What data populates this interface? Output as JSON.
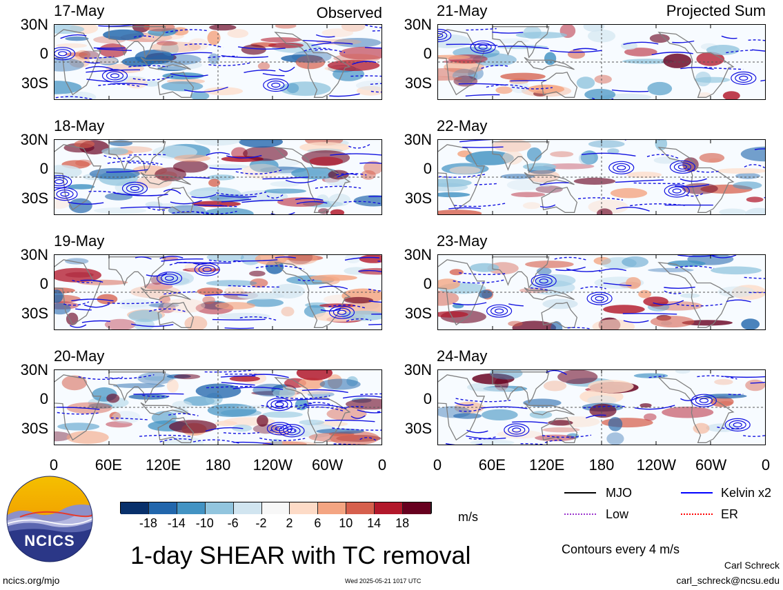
{
  "headers": {
    "observed": "Observed",
    "projected": "Projected Sum"
  },
  "panels_left": [
    {
      "date": "17-May"
    },
    {
      "date": "18-May"
    },
    {
      "date": "19-May"
    },
    {
      "date": "20-May"
    }
  ],
  "panels_right": [
    {
      "date": "21-May"
    },
    {
      "date": "22-May"
    },
    {
      "date": "23-May"
    },
    {
      "date": "24-May"
    }
  ],
  "y_ticks": [
    "30N",
    "0",
    "30S"
  ],
  "x_ticks": [
    "0",
    "60E",
    "120E",
    "180",
    "120W",
    "60W",
    "0"
  ],
  "colorbar": {
    "unit": "m/s",
    "ticks": [
      "-18",
      "-14",
      "-10",
      "-6",
      "-2",
      "2",
      "6",
      "10",
      "14",
      "18"
    ],
    "colors": [
      "#08306b",
      "#2166ac",
      "#4393c3",
      "#92c5de",
      "#d1e5f0",
      "#f7f7f7",
      "#fddbc7",
      "#f4a582",
      "#d6604d",
      "#b2182b",
      "#67001f"
    ]
  },
  "legend": {
    "items": [
      {
        "label": "MJO",
        "color": "#000000"
      },
      {
        "label": "Kelvin x2",
        "color": "#0000ff"
      },
      {
        "label": "Low",
        "color": "#9a32cd"
      },
      {
        "label": "ER",
        "color": "#ff0000"
      }
    ],
    "contours_note": "Contours every 4 m/s"
  },
  "title": "1-day SHEAR with TC removal",
  "logo_text": "NCICS",
  "footer": {
    "url": "ncics.org/mjo",
    "timestamp": "Wed 2025-05-21 1017 UTC",
    "author": "Carl Schreck",
    "email": "carl_schreck@ncsu.edu"
  }
}
